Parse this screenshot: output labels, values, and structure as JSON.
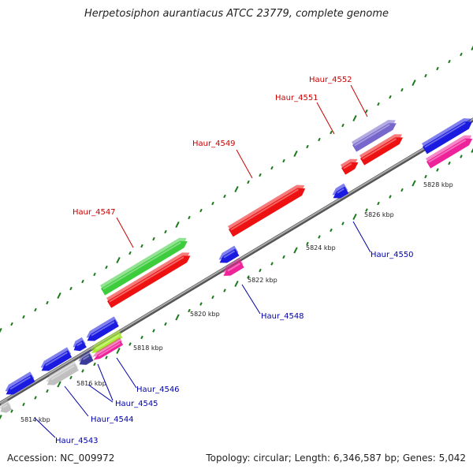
{
  "title": "Herpetosiphon aurantiacus ATCC 23779, complete genome",
  "footer": {
    "accession": "Accession: NC_009972",
    "topology": "Topology: circular; Length: 6,346,587 bp; Genes: 5,042"
  },
  "scale_labels": [
    "5814 kbp",
    "5816 kbp",
    "5818 kbp",
    "5820 kbp",
    "5822 kbp",
    "5824 kbp",
    "5826 kbp",
    "5828 kbp"
  ],
  "genes": {
    "top": [
      "Haur_4547",
      "Haur_4549",
      "Haur_4551",
      "Haur_4552"
    ],
    "bottom": [
      "Haur_4543",
      "Haur_4544",
      "Haur_4545",
      "Haur_4546",
      "Haur_4548",
      "Haur_4550"
    ]
  },
  "colors": {
    "backbone": "#808080",
    "tick": "#1a7a1a",
    "label_top": "#cc0000",
    "label_bottom": "#0000aa",
    "gene_red": "#ee1111",
    "gene_blue": "#1a1ae0",
    "gene_green": "#3ccc3c",
    "gene_magenta": "#ee2299",
    "gene_purple": "#7766cc",
    "gene_gray": "#c0c0c0",
    "gene_navy": "#3a3a9a",
    "gene_lime": "#aaee33"
  }
}
